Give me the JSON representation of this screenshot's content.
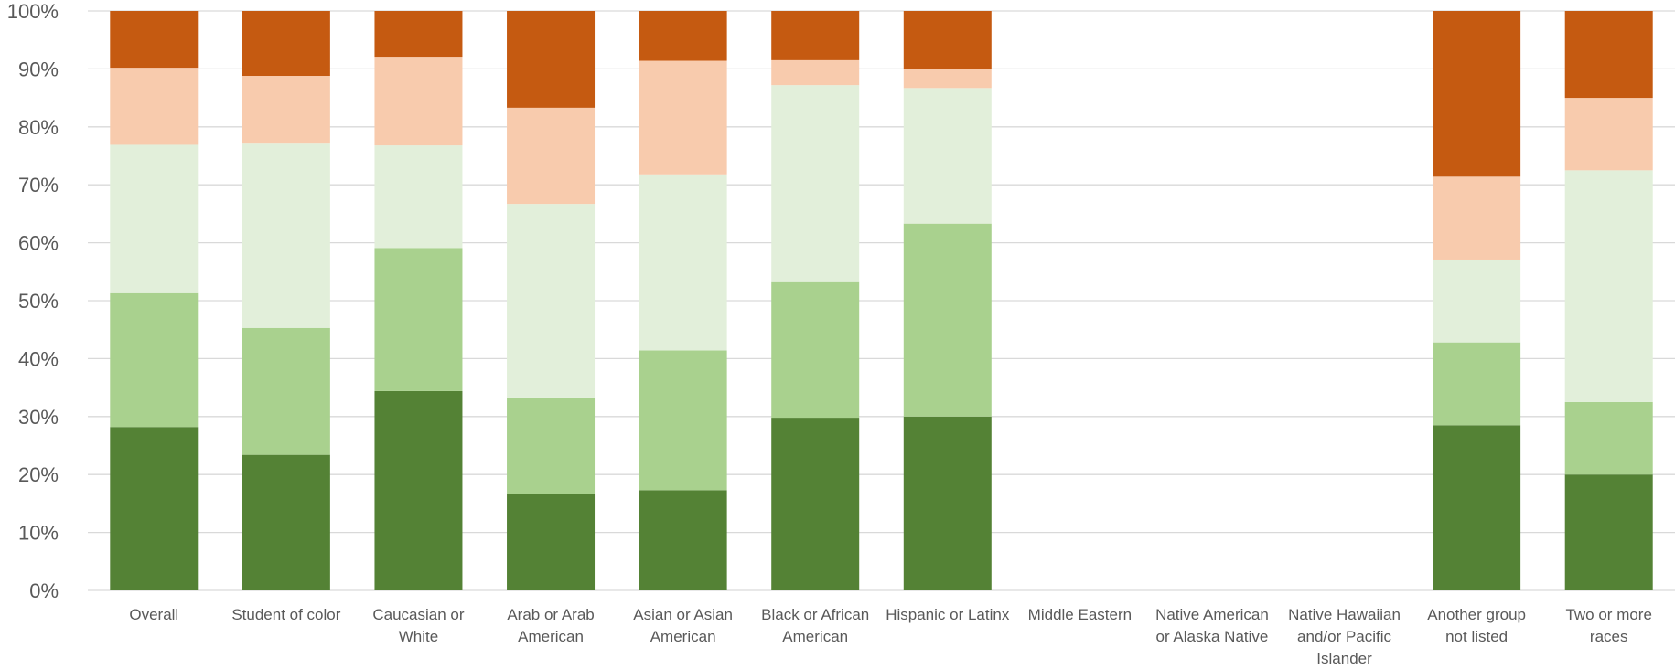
{
  "chart_data": {
    "type": "bar",
    "stacked": true,
    "percent": true,
    "title": "",
    "xlabel": "",
    "ylabel": "",
    "ylim": [
      0,
      100
    ],
    "yticks": [
      "0%",
      "10%",
      "20%",
      "30%",
      "40%",
      "50%",
      "60%",
      "70%",
      "80%",
      "90%",
      "100%"
    ],
    "grid": true,
    "legend": "none",
    "categories": [
      "Overall",
      "Student of color",
      "Caucasian or White",
      "Arab or Arab American",
      "Asian or Asian American",
      "Black or African American",
      "Hispanic or Latinx",
      "Middle Eastern",
      "Native American or Alaska Native",
      "Native Hawaiian and/or Pacific Islander",
      "Another group not listed",
      "Two or more races"
    ],
    "category_lines": [
      [
        "Overall"
      ],
      [
        "Student of color"
      ],
      [
        "Caucasian or",
        "White"
      ],
      [
        "Arab or Arab",
        "American"
      ],
      [
        "Asian or Asian",
        "American"
      ],
      [
        "Black or African",
        "American"
      ],
      [
        "Hispanic or Latinx"
      ],
      [
        "Middle Eastern"
      ],
      [
        "Native American",
        "or Alaska Native"
      ],
      [
        "Native Hawaiian",
        "and/or Pacific",
        "Islander"
      ],
      [
        "Another group",
        "not listed"
      ],
      [
        "Two or more",
        "races"
      ]
    ],
    "series": [
      {
        "color": "#548235",
        "values": [
          28.2,
          23.4,
          34.4,
          16.7,
          17.3,
          29.8,
          30.0,
          null,
          null,
          null,
          28.5,
          20.0
        ]
      },
      {
        "color": "#a9d18e",
        "values": [
          23.1,
          21.9,
          24.7,
          16.6,
          24.1,
          23.4,
          33.3,
          null,
          null,
          null,
          14.3,
          12.5
        ]
      },
      {
        "color": "#e2efda",
        "values": [
          25.6,
          31.8,
          17.7,
          33.4,
          30.4,
          34.0,
          23.4,
          null,
          null,
          null,
          14.3,
          40.0
        ]
      },
      {
        "color": "#f8cbad",
        "values": [
          13.3,
          11.7,
          15.3,
          16.6,
          19.6,
          4.3,
          3.3,
          null,
          null,
          null,
          14.3,
          12.5
        ]
      },
      {
        "color": "#c55a11",
        "values": [
          9.8,
          11.2,
          7.9,
          16.7,
          8.6,
          8.5,
          10.0,
          null,
          null,
          null,
          28.6,
          15.0
        ]
      }
    ]
  }
}
